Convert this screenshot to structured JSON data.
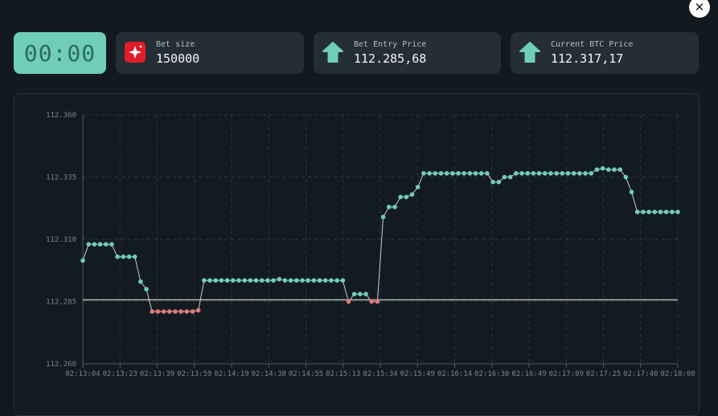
{
  "close": {
    "glyph": "✕"
  },
  "timer": {
    "value": "00:00"
  },
  "cards": [
    {
      "label": "Bet size",
      "value": "150000",
      "icon": "sparkle-icon",
      "icon_color": "#e11d2a"
    },
    {
      "label": "Bet Entry Price",
      "value": "112.285,68",
      "icon": "arrow-up-icon",
      "icon_color": "#6fcdb9"
    },
    {
      "label": "Current BTC Price",
      "value": "112.317,17",
      "icon": "arrow-up-icon",
      "icon_color": "#6fcdb9"
    }
  ],
  "chart_data": {
    "type": "line",
    "title": "",
    "xlabel": "",
    "ylabel": "",
    "ylim": [
      112.26,
      112.36
    ],
    "y_ticks": [
      "112.360",
      "112.335",
      "112.310",
      "112.285",
      "112.260"
    ],
    "y_tick_values": [
      112.36,
      112.335,
      112.31,
      112.285,
      112.26
    ],
    "x_ticks": [
      "02:13:04",
      "02:13:23",
      "02:13:39",
      "02:13:59",
      "02:14:19",
      "02:14:38",
      "02:14:55",
      "02:15:13",
      "02:15:34",
      "02:15:49",
      "02:16:14",
      "02:16:30",
      "02:16:49",
      "02:17:09",
      "02:17:25",
      "02:17:40",
      "02:18:00"
    ],
    "grid": true,
    "entry_price": 112.28568,
    "colors": {
      "above": "#6fcdb9",
      "below": "#e0797b",
      "line": "#c8cdd2",
      "entry": "#b9bdb9",
      "grid": "#2e373f",
      "axis": "#4f5961"
    },
    "values": [
      112.3015,
      112.308,
      112.308,
      112.308,
      112.308,
      112.308,
      112.303,
      112.303,
      112.303,
      112.303,
      112.293,
      112.29,
      112.281,
      112.281,
      112.281,
      112.281,
      112.281,
      112.281,
      112.281,
      112.281,
      112.2815,
      112.2935,
      112.2935,
      112.2935,
      112.2935,
      112.2935,
      112.2935,
      112.2935,
      112.2935,
      112.2935,
      112.2935,
      112.2935,
      112.2935,
      112.2935,
      112.294,
      112.2935,
      112.2935,
      112.2935,
      112.2935,
      112.2935,
      112.2935,
      112.2935,
      112.2935,
      112.2935,
      112.2935,
      112.2935,
      112.285,
      112.288,
      112.288,
      112.288,
      112.285,
      112.285,
      112.319,
      112.323,
      112.323,
      112.327,
      112.327,
      112.328,
      112.331,
      112.3365,
      112.3365,
      112.3365,
      112.3365,
      112.3365,
      112.3365,
      112.3365,
      112.3365,
      112.3365,
      112.3365,
      112.3365,
      112.3365,
      112.333,
      112.333,
      112.335,
      112.335,
      112.3365,
      112.3365,
      112.3365,
      112.3365,
      112.3365,
      112.3365,
      112.3365,
      112.3365,
      112.3365,
      112.3365,
      112.3365,
      112.3365,
      112.3365,
      112.3365,
      112.338,
      112.3385,
      112.338,
      112.338,
      112.338,
      112.335,
      112.329,
      112.321,
      112.321,
      112.321,
      112.321,
      112.321,
      112.321,
      112.321,
      112.321
    ]
  }
}
